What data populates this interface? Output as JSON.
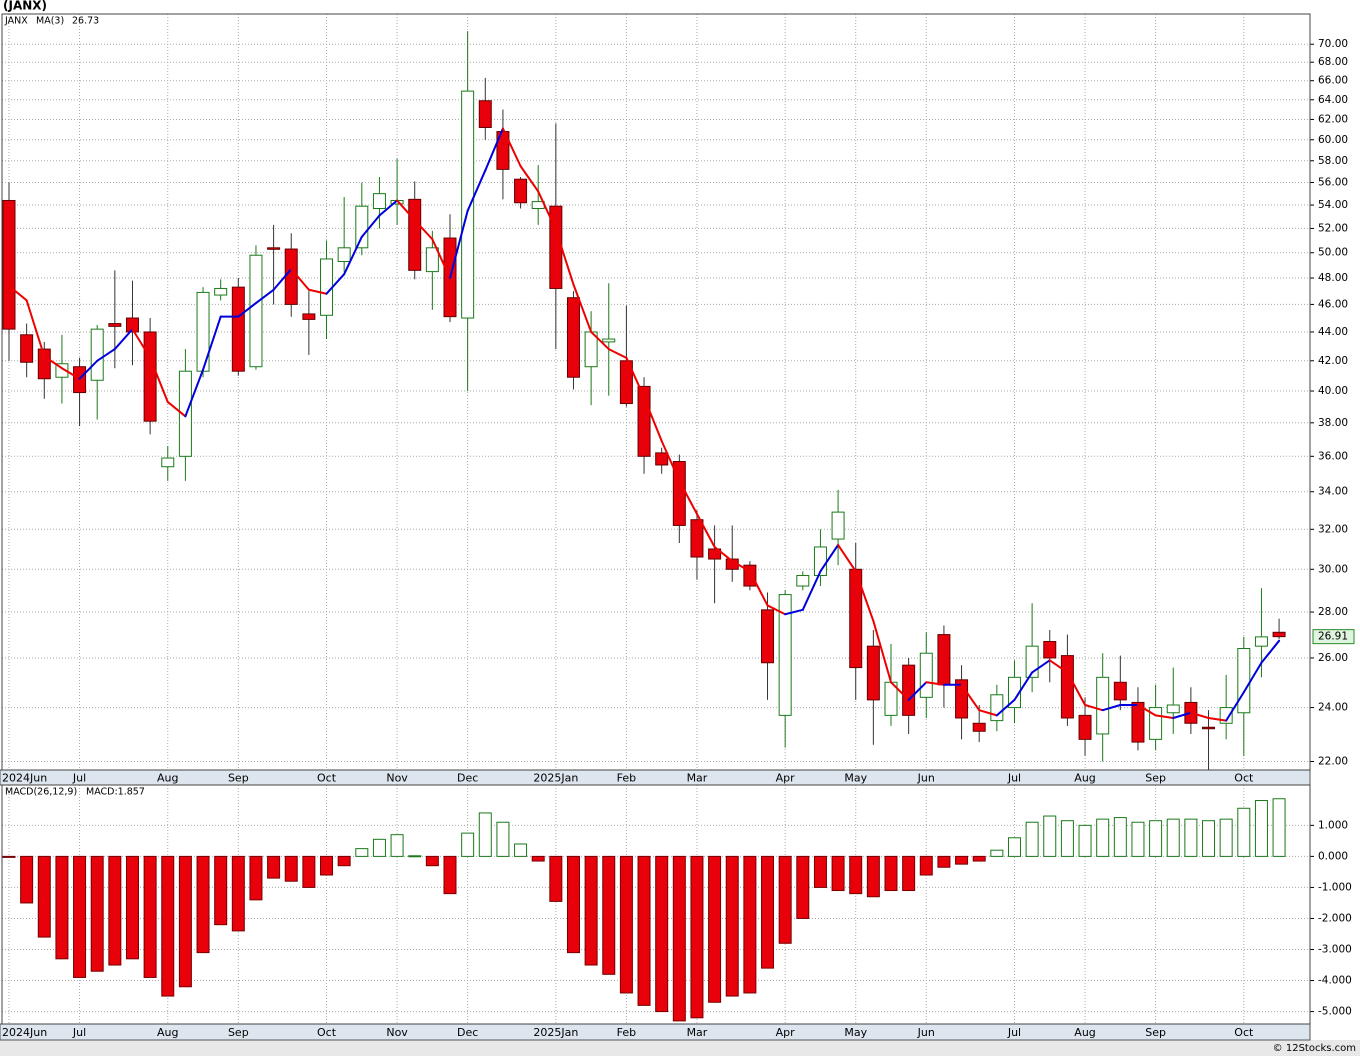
{
  "chart_data": [
    {
      "type": "candlestick",
      "title": "(JANX)",
      "symbol": "JANX",
      "categories": [
        "2024Jun",
        null,
        null,
        null,
        "Jul",
        null,
        null,
        null,
        null,
        "Aug",
        null,
        null,
        null,
        "Sep",
        null,
        null,
        null,
        null,
        "Oct",
        null,
        null,
        null,
        "Nov",
        null,
        null,
        null,
        "Dec",
        null,
        null,
        null,
        null,
        "2025Jan",
        null,
        null,
        null,
        "Feb",
        null,
        null,
        null,
        "Mar",
        null,
        null,
        null,
        null,
        "Apr",
        null,
        null,
        null,
        "May",
        null,
        null,
        null,
        "Jun",
        null,
        null,
        null,
        null,
        "Jul",
        null,
        null,
        null,
        "Aug",
        null,
        null,
        null,
        "Sep",
        null,
        null,
        null,
        null,
        "Oct",
        null,
        null
      ],
      "open": [
        54.4,
        43.8,
        42.8,
        40.9,
        41.6,
        40.7,
        44.6,
        45.0,
        44.0,
        35.4,
        36.0,
        41.3,
        46.7,
        47.3,
        41.6,
        50.4,
        50.3,
        45.3,
        45.2,
        49.3,
        50.4,
        53.7,
        54.1,
        54.5,
        48.5,
        51.2,
        45.0,
        63.9,
        60.8,
        56.3,
        53.7,
        53.9,
        46.5,
        41.6,
        43.3,
        42.0,
        40.3,
        36.2,
        35.7,
        32.5,
        31.0,
        30.5,
        30.2,
        28.1,
        23.7,
        29.2,
        29.7,
        31.5,
        30.0,
        26.5,
        23.7,
        25.7,
        24.4,
        27.0,
        25.1,
        23.4,
        23.5,
        24.0,
        25.2,
        26.7,
        26.1,
        23.7,
        23.0,
        25.0,
        24.2,
        22.8,
        23.8,
        24.2,
        23.25,
        23.4,
        23.8,
        26.5,
        27.1
      ],
      "high": [
        56.0,
        44.6,
        43.3,
        43.8,
        42.2,
        44.5,
        48.6,
        47.8,
        45.0,
        36.6,
        42.8,
        47.3,
        47.9,
        48.0,
        50.6,
        52.3,
        51.6,
        47.0,
        51.0,
        54.7,
        56.0,
        56.5,
        58.2,
        56.1,
        51.8,
        53.2,
        71.5,
        66.3,
        63.0,
        56.5,
        57.6,
        61.6,
        47.0,
        45.5,
        47.6,
        45.9,
        40.9,
        36.5,
        36.1,
        33.0,
        32.2,
        32.2,
        30.4,
        28.9,
        29.0,
        29.9,
        32.0,
        34.1,
        31.3,
        27.2,
        26.6,
        26.0,
        27.1,
        27.4,
        25.7,
        24.1,
        24.9,
        25.9,
        28.4,
        27.2,
        27.0,
        24.4,
        26.2,
        26.1,
        24.8,
        24.9,
        25.6,
        24.8,
        23.9,
        25.3,
        26.9,
        29.1,
        27.7
      ],
      "low": [
        42.0,
        40.9,
        39.5,
        39.2,
        37.8,
        38.2,
        41.5,
        41.7,
        37.3,
        34.6,
        34.6,
        40.9,
        46.3,
        41.0,
        41.4,
        46.0,
        45.1,
        42.4,
        43.5,
        48.5,
        49.8,
        52.0,
        52.3,
        47.9,
        45.6,
        44.7,
        40.0,
        60.0,
        54.5,
        53.7,
        52.3,
        42.8,
        40.1,
        39.1,
        39.7,
        39.0,
        35.0,
        35.0,
        31.3,
        29.5,
        28.4,
        29.4,
        29.0,
        24.3,
        22.5,
        29.0,
        29.2,
        30.2,
        24.3,
        22.6,
        23.3,
        23.0,
        23.6,
        24.0,
        22.8,
        22.7,
        23.1,
        23.4,
        24.6,
        25.0,
        23.3,
        22.2,
        22.0,
        23.9,
        22.4,
        22.4,
        23.0,
        23.0,
        21.7,
        22.8,
        22.2,
        25.2,
        26.8
      ],
      "close": [
        44.2,
        41.9,
        40.8,
        41.8,
        39.9,
        44.2,
        44.4,
        44.0,
        38.1,
        35.9,
        41.3,
        46.9,
        47.2,
        41.3,
        49.8,
        50.3,
        46.0,
        44.9,
        49.5,
        50.4,
        53.9,
        55.0,
        54.4,
        48.6,
        50.4,
        45.1,
        64.9,
        61.2,
        57.2,
        54.2,
        54.3,
        47.2,
        40.9,
        44.0,
        43.5,
        39.2,
        36.0,
        35.5,
        32.2,
        30.6,
        30.5,
        30.0,
        29.2,
        25.8,
        28.8,
        29.7,
        31.1,
        32.9,
        25.6,
        24.3,
        25.0,
        23.7,
        26.2,
        24.9,
        23.6,
        23.1,
        24.5,
        25.2,
        26.5,
        26.0,
        23.6,
        22.8,
        25.2,
        24.3,
        22.7,
        24.0,
        24.1,
        23.4,
        23.2,
        24.0,
        26.4,
        26.9,
        26.91
      ],
      "up_color": "#1a7a1a",
      "down_color": "#e8000b",
      "overlay": {
        "name": "MA(3)",
        "up_color": "#0000dd",
        "down_color": "#ee0000",
        "values": [
          47.4,
          46.3,
          42.3,
          41.5,
          40.8,
          42.0,
          42.8,
          44.2,
          42.2,
          39.3,
          38.4,
          41.4,
          45.1,
          45.1,
          46.1,
          47.1,
          48.7,
          47.1,
          46.8,
          48.3,
          51.3,
          53.1,
          54.4,
          52.7,
          51.1,
          48.0,
          53.5,
          57.1,
          61.1,
          57.5,
          55.2,
          51.9,
          47.5,
          44.0,
          42.8,
          42.2,
          39.6,
          36.9,
          34.6,
          32.8,
          31.1,
          30.4,
          29.9,
          28.3,
          27.9,
          28.1,
          29.9,
          31.2,
          29.9,
          27.6,
          25.0,
          24.3,
          25.0,
          24.9,
          24.9,
          23.9,
          23.7,
          24.3,
          25.4,
          25.9,
          25.4,
          24.1,
          23.9,
          24.1,
          24.1,
          23.7,
          23.6,
          23.8,
          23.6,
          23.5,
          24.6,
          25.8,
          26.73
        ]
      },
      "log_scale": true,
      "grid": true,
      "ylim": [
        21.7,
        73.5
      ],
      "yticks": [
        {
          "value": 22,
          "label": "22.00"
        },
        {
          "value": 24,
          "label": "24.00"
        },
        {
          "value": 26,
          "label": "26.00"
        },
        {
          "value": 28,
          "label": "28.00"
        },
        {
          "value": 30,
          "label": "30.00"
        },
        {
          "value": 32,
          "label": "32.00"
        },
        {
          "value": 34,
          "label": "34.00"
        },
        {
          "value": 36,
          "label": "36.00"
        },
        {
          "value": 38,
          "label": "38.00"
        },
        {
          "value": 40,
          "label": "40.00"
        },
        {
          "value": 42,
          "label": "42.00"
        },
        {
          "value": 44,
          "label": "44.00"
        },
        {
          "value": 46,
          "label": "46.00"
        },
        {
          "value": 48,
          "label": "48.00"
        },
        {
          "value": 50,
          "label": "50.00"
        },
        {
          "value": 52,
          "label": "52.00"
        },
        {
          "value": 54,
          "label": "54.00"
        },
        {
          "value": 56,
          "label": "56.00"
        },
        {
          "value": 58,
          "label": "58.00"
        },
        {
          "value": 60,
          "label": "60.00"
        },
        {
          "value": 62,
          "label": "62.00"
        },
        {
          "value": 64,
          "label": "64.00"
        },
        {
          "value": 66,
          "label": "66.00"
        },
        {
          "value": 68,
          "label": "68.00"
        },
        {
          "value": 70,
          "label": "70.00"
        }
      ]
    },
    {
      "type": "bar",
      "title": "MACD(26,12,9)",
      "legend": "MACD:1.857",
      "categories": [
        "2024Jun",
        null,
        null,
        null,
        "Jul",
        null,
        null,
        null,
        null,
        "Aug",
        null,
        null,
        null,
        "Sep",
        null,
        null,
        null,
        null,
        "Oct",
        null,
        null,
        null,
        "Nov",
        null,
        null,
        null,
        "Dec",
        null,
        null,
        null,
        null,
        "2025Jan",
        null,
        null,
        null,
        "Feb",
        null,
        null,
        null,
        "Mar",
        null,
        null,
        null,
        null,
        "Apr",
        null,
        null,
        null,
        "May",
        null,
        null,
        null,
        "Jun",
        null,
        null,
        null,
        null,
        "Jul",
        null,
        null,
        null,
        "Aug",
        null,
        null,
        null,
        "Sep",
        null,
        null,
        null,
        null,
        "Oct",
        null,
        null
      ],
      "values": [
        -0.02,
        -1.5,
        -2.6,
        -3.3,
        -3.9,
        -3.7,
        -3.5,
        -3.3,
        -3.9,
        -4.5,
        -4.2,
        -3.1,
        -2.2,
        -2.4,
        -1.4,
        -0.7,
        -0.8,
        -1.0,
        -0.6,
        -0.3,
        0.25,
        0.55,
        0.7,
        0.02,
        -0.3,
        -1.2,
        0.75,
        1.4,
        1.1,
        0.4,
        -0.15,
        -1.45,
        -3.1,
        -3.5,
        -3.8,
        -4.4,
        -4.8,
        -5.0,
        -5.3,
        -5.2,
        -4.7,
        -4.5,
        -4.4,
        -3.6,
        -2.8,
        -2.0,
        -1.0,
        -1.1,
        -1.2,
        -1.3,
        -1.1,
        -1.1,
        -0.6,
        -0.35,
        -0.25,
        -0.15,
        0.2,
        0.6,
        1.1,
        1.3,
        1.15,
        1.0,
        1.2,
        1.25,
        1.1,
        1.15,
        1.2,
        1.2,
        1.15,
        1.2,
        1.55,
        1.8,
        1.857
      ],
      "positive_color": "#1a7a1a",
      "negative_color": "#e8000b",
      "grid": true,
      "ylim": [
        -5.4,
        2.3
      ],
      "yticks": [
        {
          "value": 1,
          "label": "1.000"
        },
        {
          "value": 0,
          "label": "0.000"
        },
        {
          "value": -1,
          "label": "-1.000"
        },
        {
          "value": -2,
          "label": "-2.000"
        },
        {
          "value": -3,
          "label": "-3.000"
        },
        {
          "value": -4,
          "label": "-4.000"
        },
        {
          "value": -5,
          "label": "-5.000"
        }
      ]
    }
  ],
  "footer": "© 12Stocks.com"
}
